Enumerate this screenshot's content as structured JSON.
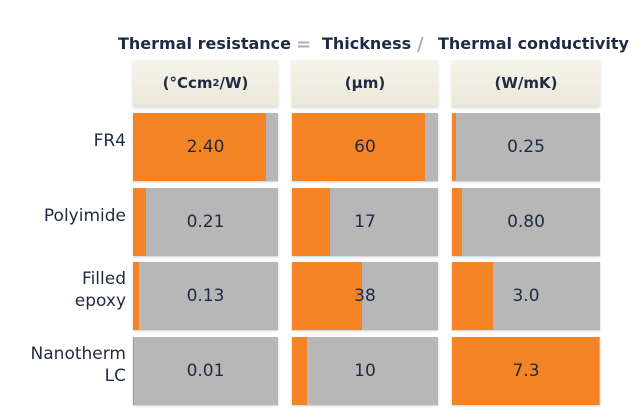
{
  "header": {
    "thermal_resistance": "Thermal resistance",
    "equals": "=",
    "thickness": "Thickness",
    "divide": "/",
    "thermal_conductivity": "Thermal conductivity",
    "unit_resistance_prefix": "(°Ccm",
    "unit_resistance_sup": "2",
    "unit_resistance_suffix": "/W)",
    "unit_thickness": "(µm)",
    "unit_conductivity": "(W/mK)"
  },
  "chart_data": {
    "type": "table",
    "columns": [
      "Thermal resistance (°Ccm2/W)",
      "Thickness (µm)",
      "Thermal conductivity (W/mK)"
    ],
    "rows": [
      {
        "material": "FR4",
        "label_lines": [
          "FR4"
        ],
        "values": [
          "2.40",
          "60",
          "0.25"
        ],
        "fill": [
          0.92,
          0.91,
          0.03
        ]
      },
      {
        "material": "Polyimide",
        "label_lines": [
          "Polyimide"
        ],
        "values": [
          "0.21",
          "17",
          "0.80"
        ],
        "fill": [
          0.09,
          0.26,
          0.07
        ]
      },
      {
        "material": "Filled epoxy",
        "label_lines": [
          "Filled",
          "epoxy"
        ],
        "values": [
          "0.13",
          "38",
          "3.0"
        ],
        "fill": [
          0.04,
          0.48,
          0.28
        ]
      },
      {
        "material": "Nanotherm LC",
        "label_lines": [
          "Nanotherm",
          "LC"
        ],
        "values": [
          "0.01",
          "10",
          "7.3"
        ],
        "fill": [
          0.01,
          0.1,
          0.99
        ]
      }
    ],
    "colors": {
      "fill": "#f58426",
      "background": "#b7b7b7",
      "header": "#ebe8d9"
    }
  }
}
